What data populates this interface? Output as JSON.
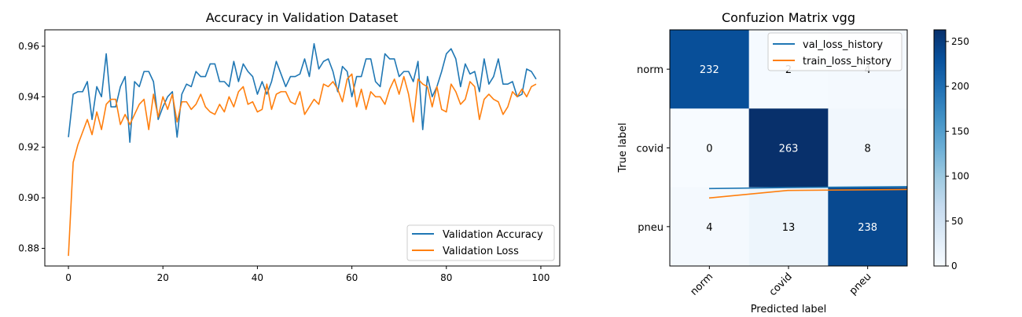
{
  "chart_data": [
    {
      "type": "line",
      "title": "Accuracy in Validation Dataset",
      "xlabel": "",
      "ylabel": "",
      "xlim": [
        -5,
        104
      ],
      "ylim": [
        0.873,
        0.9665
      ],
      "xticks": [
        0,
        20,
        40,
        60,
        80,
        100
      ],
      "xtick_labels": [
        "0",
        "20",
        "40",
        "60",
        "80",
        "100"
      ],
      "yticks": [
        0.88,
        0.9,
        0.92,
        0.94,
        0.96
      ],
      "ytick_labels": [
        "0.88",
        "0.90",
        "0.92",
        "0.94",
        "0.96"
      ],
      "legend_position": "lower-right",
      "grid": false,
      "x": [
        0,
        1,
        2,
        3,
        4,
        5,
        6,
        7,
        8,
        9,
        10,
        11,
        12,
        13,
        14,
        15,
        16,
        17,
        18,
        19,
        20,
        21,
        22,
        23,
        24,
        25,
        26,
        27,
        28,
        29,
        30,
        31,
        32,
        33,
        34,
        35,
        36,
        37,
        38,
        39,
        40,
        41,
        42,
        43,
        44,
        45,
        46,
        47,
        48,
        49,
        50,
        51,
        52,
        53,
        54,
        55,
        56,
        57,
        58,
        59,
        60,
        61,
        62,
        63,
        64,
        65,
        66,
        67,
        68,
        69,
        70,
        71,
        72,
        73,
        74,
        75,
        76,
        77,
        78,
        79,
        80,
        81,
        82,
        83,
        84,
        85,
        86,
        87,
        88,
        89,
        90,
        91,
        92,
        93,
        94,
        95,
        96,
        97,
        98,
        99
      ],
      "series": [
        {
          "name": "Validation Accuracy",
          "color": "#1f77b4",
          "values": [
            0.924,
            0.941,
            0.942,
            0.942,
            0.946,
            0.931,
            0.944,
            0.94,
            0.957,
            0.936,
            0.936,
            0.944,
            0.948,
            0.922,
            0.946,
            0.944,
            0.95,
            0.95,
            0.946,
            0.931,
            0.936,
            0.94,
            0.942,
            0.924,
            0.941,
            0.945,
            0.944,
            0.95,
            0.948,
            0.948,
            0.953,
            0.953,
            0.946,
            0.946,
            0.944,
            0.954,
            0.946,
            0.953,
            0.95,
            0.948,
            0.941,
            0.946,
            0.941,
            0.946,
            0.954,
            0.949,
            0.944,
            0.948,
            0.948,
            0.949,
            0.955,
            0.948,
            0.961,
            0.951,
            0.954,
            0.955,
            0.95,
            0.942,
            0.952,
            0.95,
            0.94,
            0.948,
            0.948,
            0.955,
            0.955,
            0.946,
            0.944,
            0.957,
            0.955,
            0.955,
            0.948,
            0.95,
            0.95,
            0.946,
            0.954,
            0.927,
            0.948,
            0.94,
            0.944,
            0.95,
            0.957,
            0.959,
            0.955,
            0.944,
            0.953,
            0.949,
            0.95,
            0.942,
            0.955,
            0.945,
            0.948,
            0.955,
            0.945,
            0.945,
            0.946,
            0.94,
            0.941,
            0.951,
            0.95,
            0.947
          ]
        },
        {
          "name": "Validation Loss",
          "color": "#ff7f0e",
          "values": [
            0.877,
            0.914,
            0.921,
            0.926,
            0.931,
            0.925,
            0.934,
            0.927,
            0.937,
            0.939,
            0.939,
            0.929,
            0.933,
            0.929,
            0.933,
            0.937,
            0.939,
            0.927,
            0.941,
            0.932,
            0.94,
            0.935,
            0.941,
            0.93,
            0.938,
            0.938,
            0.935,
            0.937,
            0.941,
            0.936,
            0.934,
            0.933,
            0.937,
            0.934,
            0.94,
            0.936,
            0.942,
            0.944,
            0.937,
            0.938,
            0.934,
            0.935,
            0.945,
            0.935,
            0.941,
            0.942,
            0.942,
            0.938,
            0.937,
            0.942,
            0.933,
            0.936,
            0.939,
            0.937,
            0.945,
            0.944,
            0.946,
            0.943,
            0.938,
            0.947,
            0.949,
            0.936,
            0.943,
            0.935,
            0.942,
            0.94,
            0.94,
            0.937,
            0.943,
            0.947,
            0.941,
            0.948,
            0.941,
            0.93,
            0.947,
            0.945,
            0.944,
            0.936,
            0.944,
            0.935,
            0.934,
            0.945,
            0.942,
            0.937,
            0.939,
            0.946,
            0.944,
            0.931,
            0.939,
            0.941,
            0.939,
            0.938,
            0.933,
            0.936,
            0.942,
            0.94,
            0.943,
            0.94,
            0.944,
            0.945
          ]
        }
      ]
    },
    {
      "type": "heatmap",
      "title": "Confuzion Matrix vgg",
      "xlabel": "Predicted label",
      "ylabel": "True label",
      "x_categories": [
        "norm",
        "covid",
        "pneu"
      ],
      "y_categories": [
        "norm",
        "covid",
        "pneu"
      ],
      "values": [
        [
          232,
          2,
          4
        ],
        [
          0,
          263,
          8
        ],
        [
          4,
          13,
          238
        ]
      ],
      "colormap": "Blues",
      "vmin": 0,
      "vmax": 263,
      "colorbar_ticks": [
        0,
        50,
        100,
        150,
        200,
        250
      ],
      "colorbar_tick_labels": [
        "0",
        "50",
        "100",
        "150",
        "200",
        "250"
      ],
      "legend_position": "upper-right",
      "overlay_series": [
        {
          "name": "val_loss_history",
          "color": "#1f77b4",
          "values": [
            0.82,
            0.83,
            0.84
          ]
        },
        {
          "name": "train_loss_history",
          "color": "#ff7f0e",
          "values": [
            0.72,
            0.8,
            0.81
          ]
        }
      ],
      "overlay_ylim": [
        0,
        2.5
      ]
    }
  ]
}
